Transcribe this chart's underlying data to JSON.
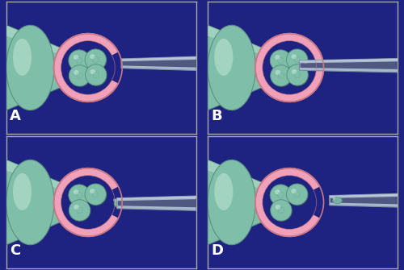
{
  "bg_color": "#1e2280",
  "panel_bg": "#1e2280",
  "zona_color": "#f0a0b8",
  "zona_edge": "#c87888",
  "cell_color": "#7fbfaa",
  "cell_edge": "#5a9080",
  "cell_highlight": "#c8e8d8",
  "cell_shadow": "#3a6050",
  "pipette_color": "#a8b8cc",
  "pipette_edge": "#7888a0",
  "pipette_lumen": "#2a3060",
  "holding_color": "#7fbfaa",
  "holding_edge": "#5a9080",
  "holding_highlight": "#c8e8d8",
  "label_color": "#ffffff",
  "label_fontsize": 13,
  "border_color": "#aaaaaa",
  "panel_labels": [
    "A",
    "B",
    "C",
    "D"
  ],
  "figsize": [
    5.0,
    3.35
  ],
  "dpi": 100
}
